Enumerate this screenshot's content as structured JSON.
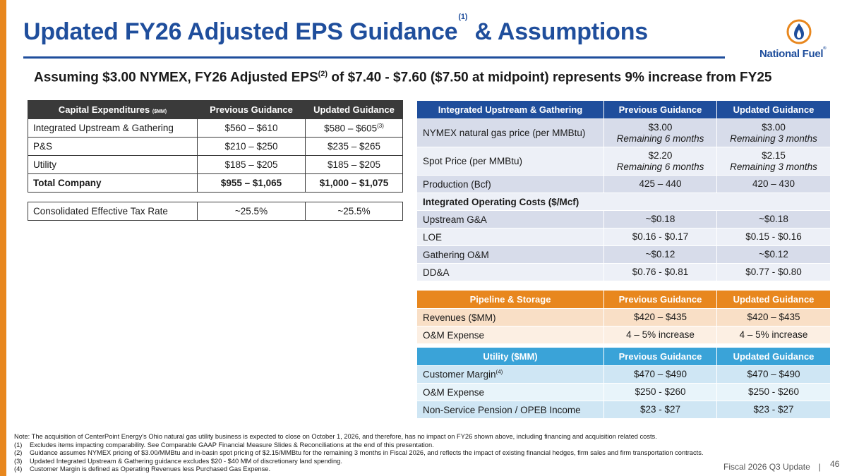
{
  "colors": {
    "brand_blue": "#1f4e9c",
    "orange": "#e8871e",
    "light_blue": "#3aa3d8",
    "dark": "#3a3a3a"
  },
  "title": {
    "main": "Updated FY26 Adjusted EPS Guidance",
    "note": "(1)",
    "rest": "& Assumptions"
  },
  "logo": {
    "text": "National Fuel",
    "mark": "®",
    "icon": "flame-icon"
  },
  "subtitle": {
    "before": "Assuming $3.00 NYMEX, FY26 Adjusted EPS",
    "note": "(2)",
    "after": " of $7.40 - $7.60 ($7.50 at midpoint) represents 9% increase from FY25"
  },
  "capex": {
    "headers": {
      "label": "Capital Expenditures",
      "unit": "($MM)",
      "prev": "Previous Guidance",
      "updated": "Updated Guidance"
    },
    "rows": [
      {
        "label": "Integrated Upstream & Gathering",
        "prev": "$560 – $610",
        "updated": "$580 – $605",
        "note": "(3)"
      },
      {
        "label": "P&S",
        "prev": "$210 – $250",
        "updated": "$235 – $265"
      },
      {
        "label": "Utility",
        "prev": "$185 – $205",
        "updated": "$185 – $205"
      },
      {
        "label": "Total Company",
        "prev": "$955 – $1,065",
        "updated": "$1,000 – $1,075"
      }
    ]
  },
  "tax": {
    "label": "Consolidated Effective Tax Rate",
    "prev": "~25.5%",
    "updated": "~25.5%"
  },
  "upstream": {
    "headers": {
      "label": "Integrated Upstream & Gathering",
      "prev": "Previous Guidance",
      "updated": "Updated Guidance"
    },
    "rows": [
      {
        "label": "NYMEX natural gas price (per MMBtu)",
        "prev": "$3.00",
        "prev_sub": "Remaining 6 months",
        "updated": "$3.00",
        "updated_sub": "Remaining 3 months"
      },
      {
        "label": "Spot Price (per MMBtu)",
        "prev": "$2.20",
        "prev_sub": "Remaining 6 months",
        "updated": "$2.15",
        "updated_sub": "Remaining 3 months"
      },
      {
        "label": "Production (Bcf)",
        "prev": "425 – 440",
        "updated": "420 – 430"
      }
    ],
    "section": "Integrated Operating Costs ($/Mcf)",
    "cost_rows": [
      {
        "label": "Upstream G&A",
        "prev": "~$0.18",
        "updated": "~$0.18"
      },
      {
        "label": "LOE",
        "prev": "$0.16 - $0.17",
        "updated": "$0.15 - $0.16"
      },
      {
        "label": "Gathering O&M",
        "prev": "~$0.12",
        "updated": "~$0.12"
      },
      {
        "label": "DD&A",
        "prev": "$0.76 - $0.81",
        "updated": "$0.77 - $0.80"
      }
    ]
  },
  "pipeline": {
    "headers": {
      "label": "Pipeline & Storage",
      "prev": "Previous Guidance",
      "updated": "Updated Guidance"
    },
    "rows": [
      {
        "label": "Revenues ($MM)",
        "prev": "$420 – $435",
        "updated": "$420 – $435"
      },
      {
        "label": "O&M Expense",
        "prev": "4 – 5% increase",
        "updated": "4 – 5% increase"
      }
    ]
  },
  "utility": {
    "headers": {
      "label": "Utility ($MM)",
      "prev": "Previous Guidance",
      "updated": "Updated Guidance"
    },
    "rows": [
      {
        "label": "Customer Margin",
        "note": "(4)",
        "prev": "$470 – $490",
        "updated": "$470 – $490"
      },
      {
        "label": "O&M Expense",
        "prev": "$250 - $260",
        "updated": "$250 - $260"
      },
      {
        "label": "Non-Service Pension / OPEB Income",
        "prev": "$23 - $27",
        "updated": "$23 - $27"
      }
    ]
  },
  "notes": {
    "intro": "Note: The acquisition of CenterPoint Energy’s Ohio natural gas utility business is expected to close on October 1, 2026, and therefore, has no impact on FY26 shown above, including financing and acquisition related costs.",
    "items": [
      {
        "key": "(1)",
        "text": "Excludes items impacting comparability. See Comparable GAAP Financial Measure Slides & Reconciliations at the end of this presentation."
      },
      {
        "key": "(2)",
        "text": "Guidance assumes NYMEX pricing of $3.00/MMBtu and in-basin spot pricing of $2.15/MMBtu for the remaining 3 months in Fiscal 2026, and reflects the impact of existing financial hedges, firm sales and firm transportation contracts."
      },
      {
        "key": "(3)",
        "text": "Updated Integrated Upstream & Gathering guidance excludes $20 - $40 MM of discretionary land spending."
      },
      {
        "key": "(4)",
        "text": "Customer Margin is defined as Operating Revenues less Purchased Gas Expense."
      }
    ]
  },
  "footer": {
    "label": "Fiscal 2026 Q3 Update",
    "separator": "|",
    "page": "46"
  }
}
